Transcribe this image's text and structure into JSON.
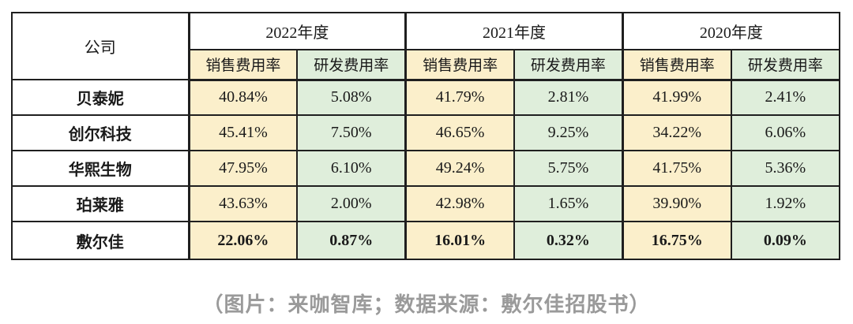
{
  "table": {
    "company_header": "公司",
    "year_groups": [
      {
        "label": "2022年度"
      },
      {
        "label": "2021年度"
      },
      {
        "label": "2020年度"
      }
    ],
    "sub_headers": {
      "sales": "销售费用率",
      "rnd": "研发费用率"
    },
    "rows": [
      {
        "company": "贝泰妮",
        "values": [
          "40.84%",
          "5.08%",
          "41.79%",
          "2.81%",
          "41.99%",
          "2.41%"
        ]
      },
      {
        "company": "创尔科技",
        "values": [
          "45.41%",
          "7.50%",
          "46.65%",
          "9.25%",
          "34.22%",
          "6.06%"
        ]
      },
      {
        "company": "华熙生物",
        "values": [
          "47.95%",
          "6.10%",
          "49.24%",
          "5.75%",
          "41.75%",
          "5.36%"
        ]
      },
      {
        "company": "珀莱雅",
        "values": [
          "43.63%",
          "2.00%",
          "42.98%",
          "1.65%",
          "39.90%",
          "1.92%"
        ]
      },
      {
        "company": "敷尔佳",
        "values": [
          "22.06%",
          "0.87%",
          "16.01%",
          "0.32%",
          "16.75%",
          "0.09%"
        ]
      }
    ],
    "colors": {
      "sales_bg": "#FBEFCB",
      "rnd_bg": "#DFEEDB",
      "border": "#1f1f1f",
      "caption_text": "#9a9a9a"
    }
  },
  "caption": "（图片：来咖智库；数据来源：敷尔佳招股书）",
  "chart_data": {
    "type": "table",
    "title": "",
    "column_groups": [
      "2022年度",
      "2021年度",
      "2020年度"
    ],
    "columns": [
      "公司",
      "2022年度 销售费用率",
      "2022年度 研发费用率",
      "2021年度 销售费用率",
      "2021年度 研发费用率",
      "2020年度 销售费用率",
      "2020年度 研发费用率"
    ],
    "rows": [
      {
        "company": "贝泰妮",
        "values_pct": [
          40.84,
          5.08,
          41.79,
          2.81,
          41.99,
          2.41
        ]
      },
      {
        "company": "创尔科技",
        "values_pct": [
          45.41,
          7.5,
          46.65,
          9.25,
          34.22,
          6.06
        ]
      },
      {
        "company": "华熙生物",
        "values_pct": [
          47.95,
          6.1,
          49.24,
          5.75,
          41.75,
          5.36
        ]
      },
      {
        "company": "珀莱雅",
        "values_pct": [
          43.63,
          2.0,
          42.98,
          1.65,
          39.9,
          1.92
        ]
      },
      {
        "company": "敷尔佳",
        "values_pct": [
          22.06,
          0.87,
          16.01,
          0.32,
          16.75,
          0.09
        ]
      }
    ],
    "annotations": [
      "（图片：来咖智库；数据来源：敷尔佳招股书）"
    ],
    "layout_hints": {
      "highlight_row": "敷尔佳",
      "sales_columns_bg": "#FBEFCB",
      "rnd_columns_bg": "#DFEEDB",
      "grid": "on"
    }
  }
}
